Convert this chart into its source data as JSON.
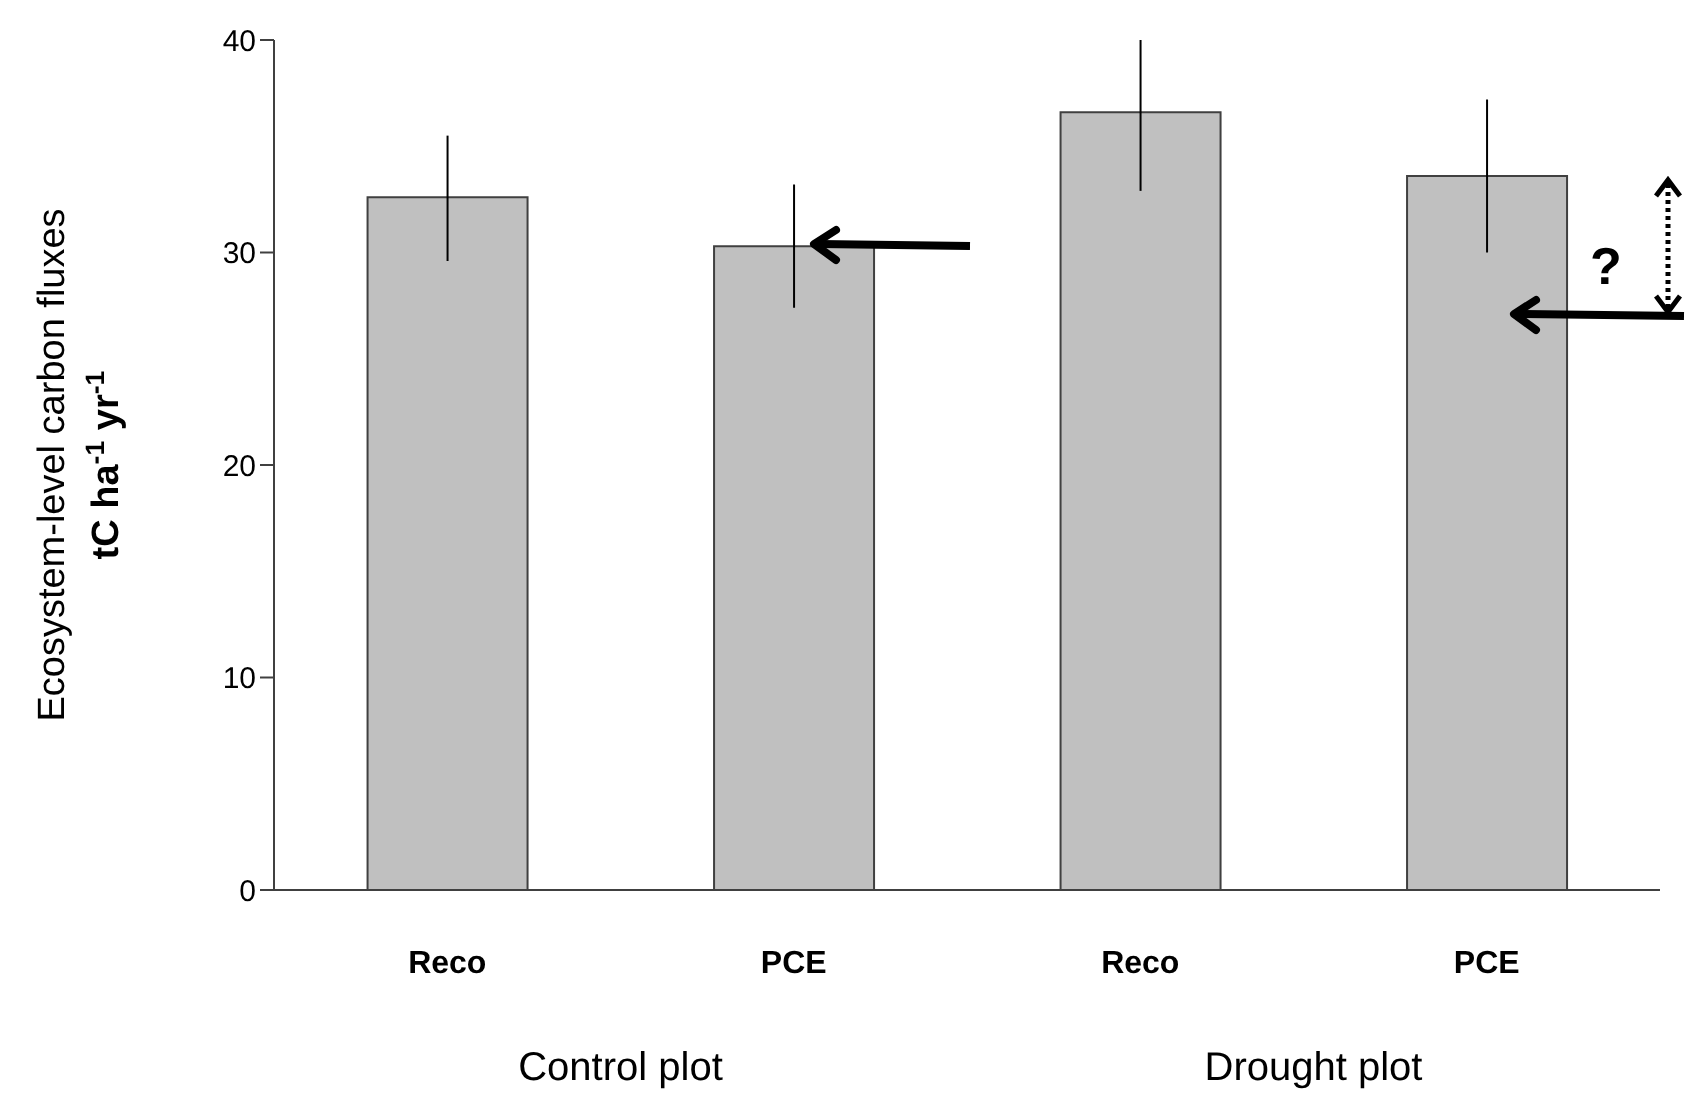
{
  "chart_data": {
    "type": "bar",
    "ylabel": "Ecosystem-level carbon fluxes\ntC ha$^{-1}$ yr$^{-1}$",
    "categories": [
      "Reco",
      "PCE",
      "Reco",
      "PCE"
    ],
    "values": [
      32.6,
      30.3,
      36.6,
      33.6
    ],
    "errors": [
      [
        29.6,
        35.5
      ],
      [
        27.4,
        33.2
      ],
      [
        32.9,
        40.0
      ],
      [
        30.0,
        37.2
      ]
    ],
    "color": "#c0c0c0",
    "ylim": [
      0,
      40
    ],
    "yticks": [
      0,
      10,
      20,
      30,
      40
    ],
    "grid": false,
    "annotations": [
      "Control plot",
      "Drought plot",
      "?"
    ]
  }
}
